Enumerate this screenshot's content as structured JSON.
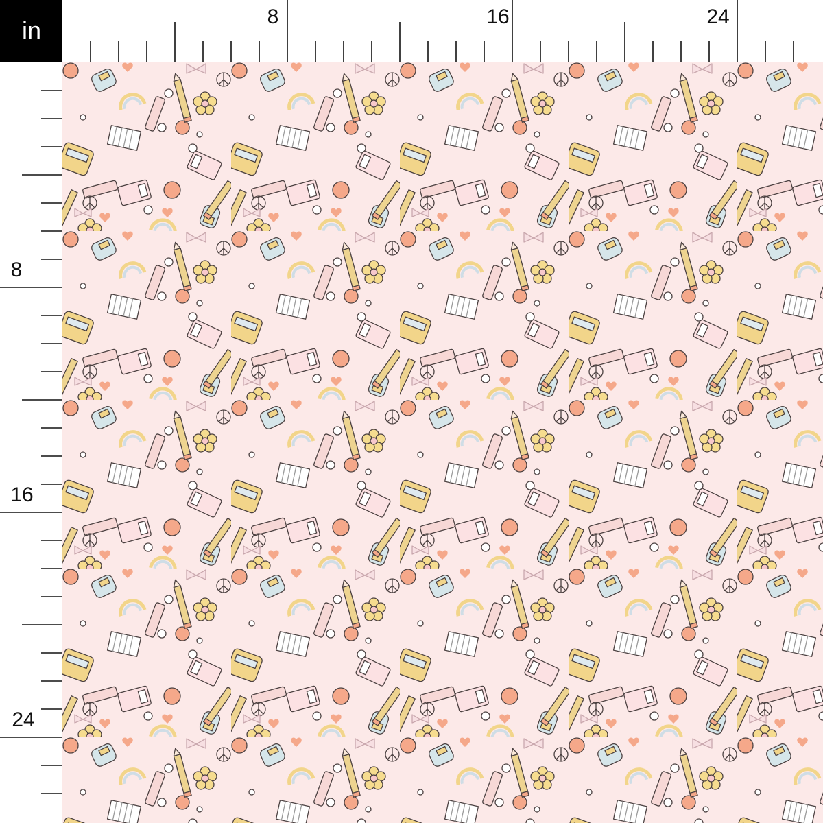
{
  "ruler": {
    "unit_label": "in",
    "top_labels": [
      "8",
      "16",
      "24"
    ],
    "left_labels": [
      "8",
      "16",
      "24"
    ],
    "unit_box_color": "#000000"
  },
  "fabric": {
    "background_color": "#fce9e8",
    "motifs": [
      "apple-icon",
      "pencil-icon",
      "daisy-icon",
      "heart-icon",
      "rainbow-icon",
      "backpack-icon",
      "school-bus-icon",
      "calculator-icon",
      "notebook-icon",
      "bow-icon",
      "peace-sign-icon",
      "glue-stick-icon",
      "pencil-case-icon"
    ],
    "palette": {
      "apple": "#f5a88a",
      "flower": "#f6dc8f",
      "pencil": "#eed490",
      "blue": "#d6e6ea",
      "outline": "#4a4040",
      "bow": "#e8c8cc"
    }
  }
}
